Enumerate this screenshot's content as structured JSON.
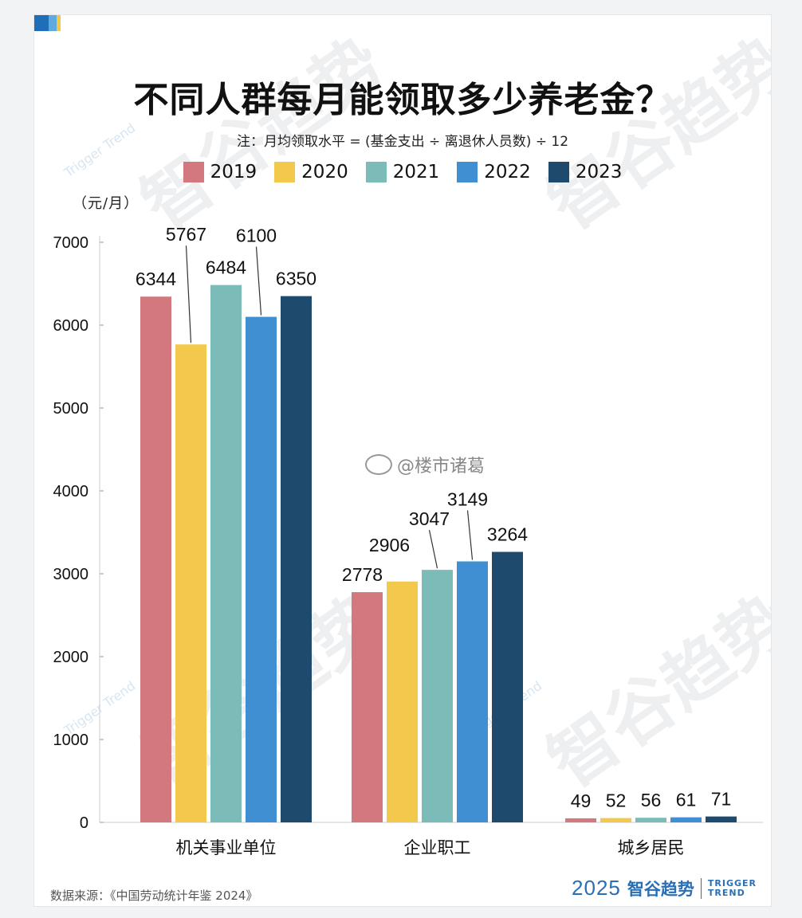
{
  "header": {
    "title": "不同人群每月能领取多少养老金？",
    "note": "注：月均领取水平 = (基金支出 ÷ 离退休人员数) ÷ 12",
    "unit": "（元/月）"
  },
  "footer": {
    "source": "数据来源：《中国劳动统计年鉴 2024》",
    "brand_year": "2025",
    "brand_cn": "智谷趋势",
    "brand_en_1": "TRIGGER",
    "brand_en_2": "TREND"
  },
  "watermark": {
    "cn": "智谷趋势",
    "en": "Trigger Trend",
    "weibo": "@楼市诸葛"
  },
  "colors": {
    "corner": [
      "#1f6fb8",
      "#5da9e0",
      "#f0c94a"
    ]
  },
  "chart_data": {
    "type": "bar",
    "title": "不同人群每月能领取多少养老金？",
    "ylabel": "（元/月）",
    "ylim": [
      0,
      7000
    ],
    "yticks": [
      0,
      1000,
      2000,
      3000,
      4000,
      5000,
      6000,
      7000
    ],
    "categories": [
      "机关事业单位",
      "企业职工",
      "城乡居民"
    ],
    "series": [
      {
        "name": "2019",
        "color": "#d2787e",
        "values": [
          6344,
          2778,
          49
        ]
      },
      {
        "name": "2020",
        "color": "#f2c94c",
        "values": [
          5767,
          2906,
          52
        ]
      },
      {
        "name": "2021",
        "color": "#7bbcb9",
        "values": [
          6484,
          3047,
          56
        ]
      },
      {
        "name": "2022",
        "color": "#3f8fd2",
        "values": [
          6100,
          3149,
          61
        ]
      },
      {
        "name": "2023",
        "color": "#1e4a6e",
        "values": [
          6350,
          3264,
          71
        ]
      }
    ],
    "grid": false,
    "legend": "top-center"
  }
}
